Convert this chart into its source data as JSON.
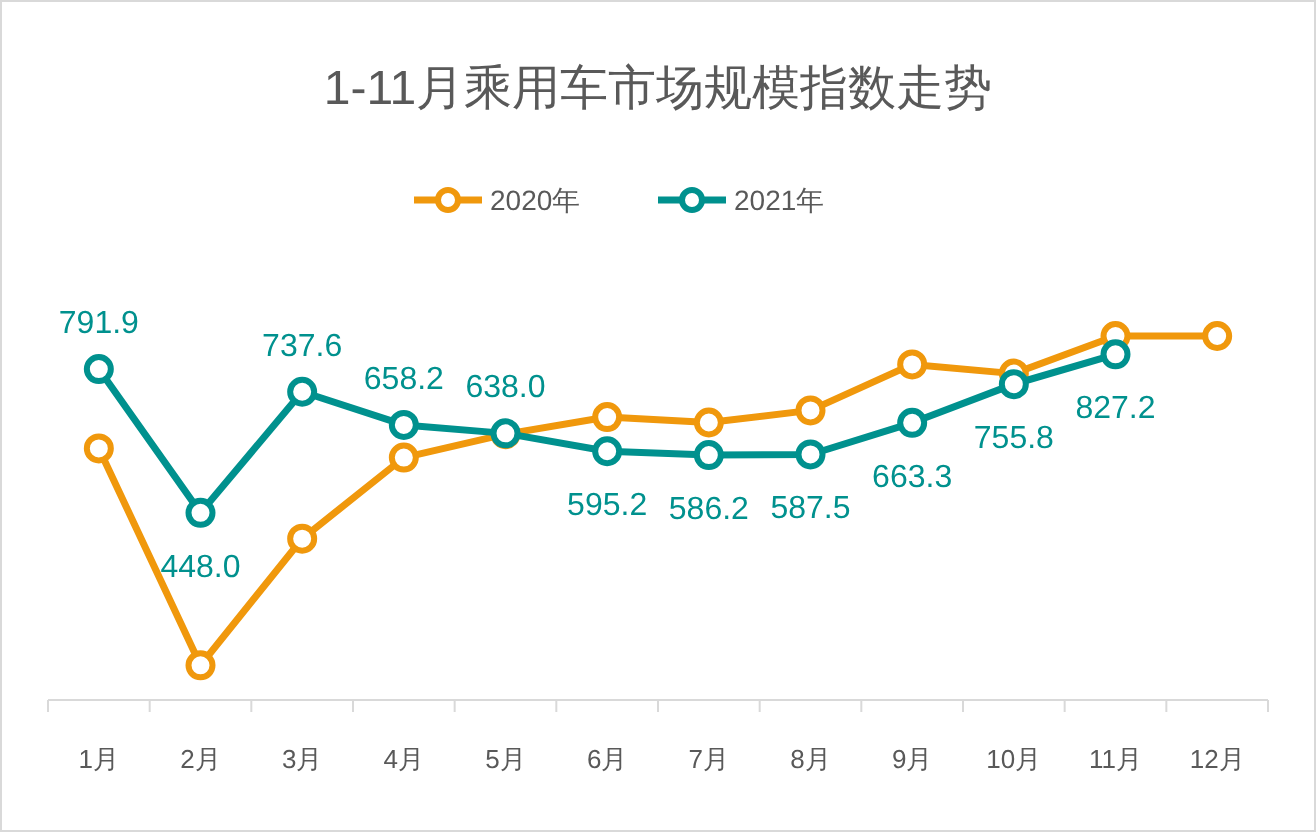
{
  "chart_data": {
    "type": "line",
    "title": "1-11月乘用车市场规模指数走势",
    "categories": [
      "1月",
      "2月",
      "3月",
      "4月",
      "5月",
      "6月",
      "7月",
      "8月",
      "9月",
      "10月",
      "11月",
      "12月"
    ],
    "series": [
      {
        "name": "2020年",
        "color": "#f0980c",
        "values": [
          602,
          83,
          386,
          580,
          636,
          677,
          664,
          693,
          803,
          781,
          871,
          871
        ]
      },
      {
        "name": "2021年",
        "color": "#00918e",
        "values": [
          791.9,
          448.0,
          737.6,
          658.2,
          638.0,
          595.2,
          586.2,
          587.5,
          663.3,
          755.8,
          827.2,
          null
        ],
        "value_labels": [
          "791.9",
          "448.0",
          "737.6",
          "658.2",
          "638.0",
          "595.2",
          "586.2",
          "587.5",
          "663.3",
          "755.8",
          "827.2",
          null
        ]
      }
    ],
    "marker": "circle",
    "line_style": "solid",
    "legend": "top",
    "tick_labels": "x",
    "grid": false
  }
}
